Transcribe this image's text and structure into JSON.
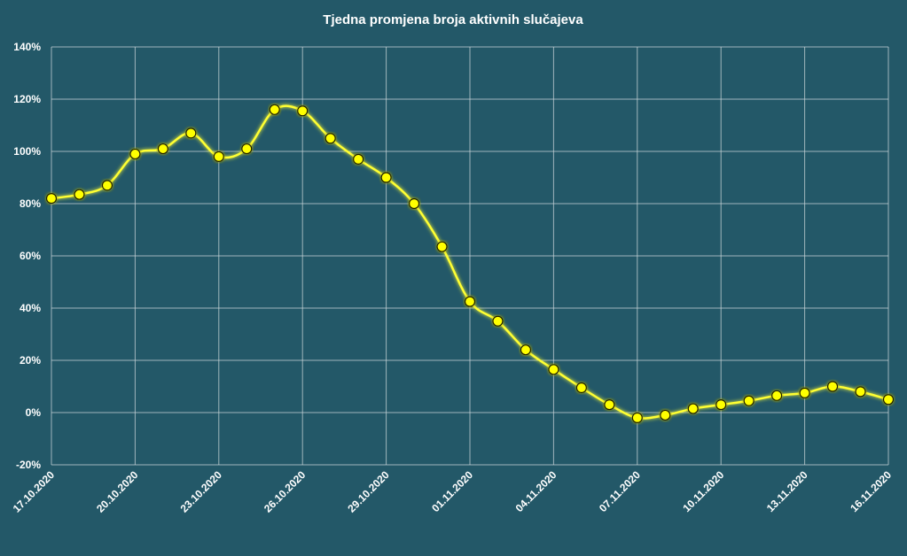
{
  "chart_data": {
    "type": "line",
    "title": "Tjedna promjena broja aktivnih slučajeva",
    "xlabel": "",
    "ylabel": "",
    "ylim": [
      -20,
      140
    ],
    "y_ticks": [
      -20,
      0,
      20,
      40,
      60,
      80,
      100,
      120,
      140
    ],
    "y_tick_suffix": "%",
    "x_tick_labels": [
      "17.10.2020",
      "20.10.2020",
      "23.10.2020",
      "26.10.2020",
      "29.10.2020",
      "01.11.2020",
      "04.11.2020",
      "07.11.2020",
      "10.11.2020",
      "13.11.2020",
      "16.11.2020"
    ],
    "x_dates": [
      "17.10.2020",
      "18.10.2020",
      "19.10.2020",
      "20.10.2020",
      "21.10.2020",
      "22.10.2020",
      "23.10.2020",
      "24.10.2020",
      "25.10.2020",
      "26.10.2020",
      "27.10.2020",
      "28.10.2020",
      "29.10.2020",
      "30.10.2020",
      "31.10.2020",
      "01.11.2020",
      "02.11.2020",
      "03.11.2020",
      "04.11.2020",
      "05.11.2020",
      "06.11.2020",
      "07.11.2020",
      "08.11.2020",
      "09.11.2020",
      "10.11.2020",
      "11.11.2020",
      "12.11.2020",
      "13.11.2020",
      "14.11.2020",
      "15.11.2020",
      "16.11.2020"
    ],
    "series": [
      {
        "values": [
          82,
          83.5,
          87,
          99,
          101,
          107,
          98,
          101,
          116,
          115.5,
          105,
          97,
          90,
          80,
          63.5,
          42.5,
          35,
          24,
          16.5,
          9.5,
          3,
          -2,
          -1,
          1.5,
          3,
          4.5,
          6.5,
          7.5,
          10,
          8,
          5
        ]
      }
    ],
    "grid": true,
    "legend": "none",
    "colors": {
      "background": "#235868",
      "line": "#ffff33",
      "marker": "#ffff00",
      "grid": "#c9d4d8",
      "text": "#ffffff"
    }
  }
}
